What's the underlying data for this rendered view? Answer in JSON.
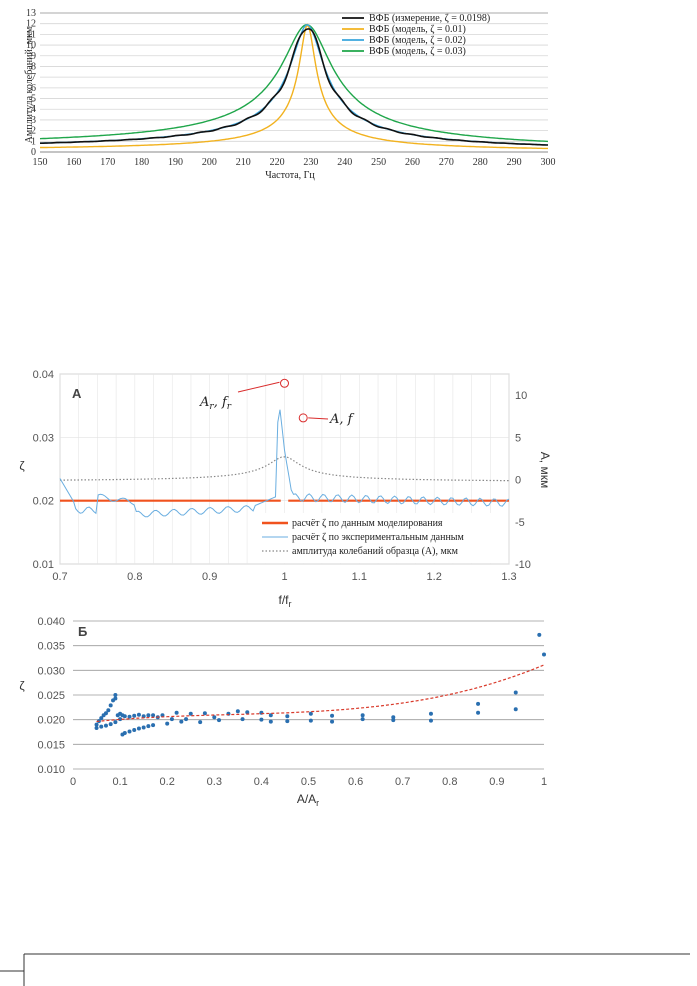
{
  "chart_data": [
    {
      "type": "line",
      "xlabel": "Частота, Гц",
      "ylabel": "Амплитуда колебаний, мкм",
      "xlim": [
        150,
        300
      ],
      "ylim": [
        0,
        13
      ],
      "xticks": [
        "150",
        "160",
        "170",
        "180",
        "190",
        "200",
        "210",
        "220",
        "230",
        "240",
        "250",
        "260",
        "270",
        "280",
        "290",
        "300"
      ],
      "yticks": [
        "0",
        "1",
        "2",
        "3",
        "4",
        "5",
        "6",
        "7",
        "8",
        "9",
        "10",
        "11",
        "12",
        "13"
      ],
      "grid": "horizontal",
      "legend_position": "top-right",
      "resonance": {
        "f0": 229,
        "amplitude": 11.9
      },
      "series": [
        {
          "name": "ВФБ (измерение, ζ = 0.0198)",
          "color": "#111111",
          "zeta": 0.0198
        },
        {
          "name": "ВФБ (модель, ζ = 0.01)",
          "color": "#f2b21f",
          "zeta": 0.01
        },
        {
          "name": "ВФБ (модель, ζ = 0.02)",
          "color": "#3aa6dd",
          "zeta": 0.02
        },
        {
          "name": "ВФБ (модель, ζ = 0.03)",
          "color": "#1fa64a",
          "zeta": 0.03
        }
      ]
    },
    {
      "type": "line",
      "panel_label": "А",
      "xlabel": "f/fr",
      "ylabel": "ζ",
      "ylabel_right": "A, мкм",
      "xlim": [
        0.7,
        1.3
      ],
      "ylim": [
        0.01,
        0.04
      ],
      "ylim_right": [
        -10,
        12.5
      ],
      "xticks": [
        "0.7",
        "0.8",
        "0.9",
        "1",
        "1.1",
        "1.2",
        "1.3"
      ],
      "yticks": [
        "0.01",
        "0.02",
        "0.03",
        "0.04"
      ],
      "yticks_right": [
        "-10",
        "-5",
        "0",
        "5",
        "10"
      ],
      "annotations": [
        "Ar, fr",
        "A, f"
      ],
      "legend_position": "bottom-right",
      "series": [
        {
          "name": "расчёт ζ по данным моделирования",
          "color": "#f0521e",
          "value": 0.02
        },
        {
          "name": "расчёт ζ по экспериментальным данным",
          "color": "#6aaee0"
        },
        {
          "name": "амплитуда колебаний образца (А), мкм",
          "color": "#888888"
        }
      ]
    },
    {
      "type": "scatter",
      "panel_label": "Б",
      "xlabel": "A/Ar",
      "ylabel": "ζ",
      "xlim": [
        0,
        1
      ],
      "ylim": [
        0.01,
        0.04
      ],
      "xticks": [
        "0",
        "0.1",
        "0.2",
        "0.3",
        "0.4",
        "0.5",
        "0.6",
        "0.7",
        "0.8",
        "0.9",
        "1"
      ],
      "yticks": [
        "0.010",
        "0.015",
        "0.020",
        "0.025",
        "0.030",
        "0.035",
        "0.040"
      ],
      "grid": "horizontal",
      "trend_color": "#d93a2b",
      "point_color": "#2a6fb0",
      "points": [
        [
          0.99,
          0.0372
        ],
        [
          1.0,
          0.0332
        ],
        [
          0.94,
          0.0255
        ],
        [
          0.94,
          0.0221
        ],
        [
          0.86,
          0.0232
        ],
        [
          0.86,
          0.0214
        ],
        [
          0.76,
          0.0198
        ],
        [
          0.76,
          0.0212
        ],
        [
          0.68,
          0.0205
        ],
        [
          0.68,
          0.0199
        ],
        [
          0.615,
          0.0209
        ],
        [
          0.615,
          0.0201
        ],
        [
          0.55,
          0.0208
        ],
        [
          0.55,
          0.0196
        ],
        [
          0.505,
          0.0212
        ],
        [
          0.505,
          0.0198
        ],
        [
          0.455,
          0.0207
        ],
        [
          0.455,
          0.0197
        ],
        [
          0.42,
          0.0209
        ],
        [
          0.42,
          0.0196
        ],
        [
          0.4,
          0.0214
        ],
        [
          0.4,
          0.02
        ],
        [
          0.37,
          0.0215
        ],
        [
          0.36,
          0.0201
        ],
        [
          0.35,
          0.0217
        ],
        [
          0.33,
          0.0212
        ],
        [
          0.31,
          0.0199
        ],
        [
          0.3,
          0.0205
        ],
        [
          0.28,
          0.0213
        ],
        [
          0.27,
          0.0195
        ],
        [
          0.25,
          0.0212
        ],
        [
          0.24,
          0.0201
        ],
        [
          0.23,
          0.0196
        ],
        [
          0.22,
          0.0214
        ],
        [
          0.21,
          0.0201
        ],
        [
          0.2,
          0.0192
        ],
        [
          0.19,
          0.0209
        ],
        [
          0.18,
          0.0205
        ],
        [
          0.17,
          0.0209
        ],
        [
          0.16,
          0.0209
        ],
        [
          0.15,
          0.0207
        ],
        [
          0.14,
          0.021
        ],
        [
          0.13,
          0.0208
        ],
        [
          0.12,
          0.0206
        ],
        [
          0.11,
          0.0207
        ],
        [
          0.105,
          0.0209
        ],
        [
          0.1,
          0.0212
        ],
        [
          0.095,
          0.0209
        ],
        [
          0.09,
          0.025
        ],
        [
          0.09,
          0.0243
        ],
        [
          0.085,
          0.0239
        ],
        [
          0.08,
          0.0229
        ],
        [
          0.075,
          0.0219
        ],
        [
          0.07,
          0.0213
        ],
        [
          0.065,
          0.0209
        ],
        [
          0.06,
          0.0203
        ],
        [
          0.055,
          0.0197
        ],
        [
          0.05,
          0.019
        ],
        [
          0.05,
          0.0183
        ],
        [
          0.06,
          0.0186
        ],
        [
          0.07,
          0.0188
        ],
        [
          0.08,
          0.0191
        ],
        [
          0.09,
          0.0195
        ],
        [
          0.1,
          0.0201
        ],
        [
          0.105,
          0.017
        ],
        [
          0.11,
          0.0173
        ],
        [
          0.12,
          0.0176
        ],
        [
          0.13,
          0.0179
        ],
        [
          0.14,
          0.0182
        ],
        [
          0.15,
          0.0184
        ],
        [
          0.16,
          0.0187
        ],
        [
          0.17,
          0.0189
        ]
      ]
    }
  ]
}
